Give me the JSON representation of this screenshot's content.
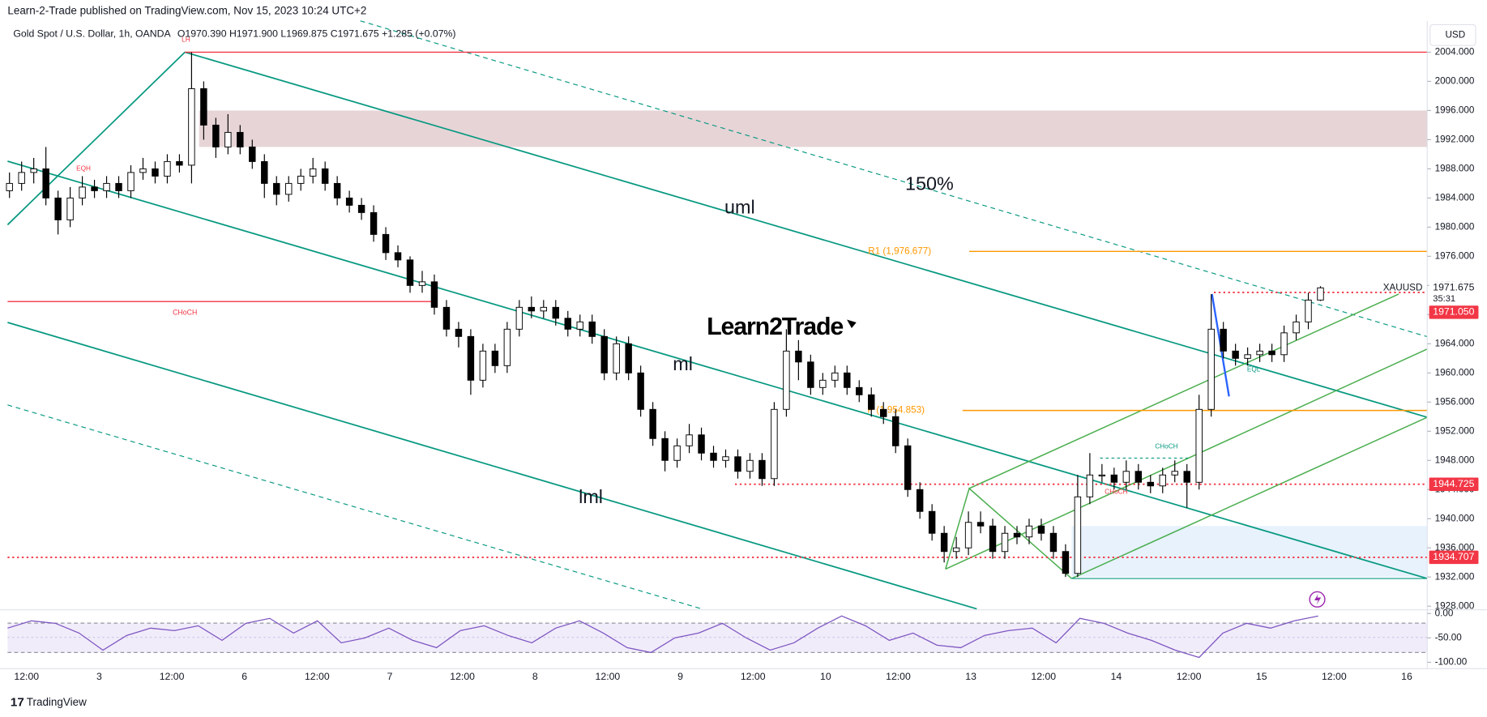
{
  "header": {
    "published": "Learn-2-Trade published on TradingView.com, Nov 15, 2023 10:24 UTC+2",
    "symbol": "Gold Spot / U.S. Dollar, 1h, OANDA",
    "ohlc": "O1970.390 H1971.900 L1969.875 C1971.675 +1.285 (+0.07%)",
    "currency": "USD",
    "footer": "TradingView"
  },
  "chart_data": [
    {
      "type": "candlestick",
      "up_color": "#ffffff",
      "down_color": "#000000",
      "x_labels": [
        "12:00",
        "3",
        "12:00",
        "6",
        "12:00",
        "7",
        "12:00",
        "8",
        "12:00",
        "9",
        "12:00",
        "10",
        "12:00",
        "13",
        "12:00",
        "14",
        "12:00",
        "15",
        "12:00",
        "16"
      ],
      "open": [
        1985,
        1986,
        1987.5,
        1988,
        1984,
        1981,
        1984,
        1985.5,
        1985,
        1986,
        1985,
        1987.5,
        1988,
        1987,
        1989,
        1988.5,
        1999,
        1994,
        1991,
        1993,
        1991,
        1989,
        1986,
        1984.5,
        1986,
        1987,
        1988,
        1986,
        1984,
        1983,
        1982,
        1979,
        1976.5,
        1975.5,
        1972,
        1972.5,
        1969,
        1966,
        1965,
        1959,
        1963,
        1961,
        1966,
        1969,
        1968.5,
        1969,
        1967.5,
        1966,
        1967,
        1965,
        1960,
        1964,
        1960,
        1955,
        1951,
        1948,
        1950,
        1951.5,
        1949,
        1948,
        1948.5,
        1946.5,
        1948,
        1945.5,
        1955,
        1963,
        1961.5,
        1958,
        1959,
        1960,
        1958,
        1957,
        1955,
        1954,
        1950,
        1944,
        1941,
        1938,
        1935.5,
        1936,
        1939.5,
        1939,
        1935.5,
        1938,
        1937.5,
        1939,
        1938,
        1935.5,
        1932.5,
        1943,
        1946,
        1946,
        1945,
        1946.5,
        1945,
        1944.5,
        1946,
        1946.5,
        1945,
        1955,
        1966,
        1963,
        1962,
        1962.5,
        1963,
        1962.5,
        1965.5,
        1967,
        1970
      ],
      "high": [
        1987.5,
        1989,
        1989.5,
        1991,
        1985,
        1985.5,
        1987,
        1986.5,
        1987,
        1987,
        1988.5,
        1989.5,
        1989,
        1990,
        1990,
        2004,
        2000,
        1995,
        1995.5,
        1994,
        1992,
        1990,
        1987,
        1987,
        1988,
        1989.5,
        1989,
        1987,
        1985,
        1984,
        1983,
        1980,
        1977.5,
        1976,
        1974,
        1973.5,
        1970,
        1967,
        1966,
        1964,
        1964,
        1967,
        1970,
        1970.5,
        1970,
        1970,
        1968.5,
        1968,
        1968,
        1966,
        1965,
        1965,
        1961,
        1956,
        1952,
        1951,
        1953,
        1952.5,
        1950,
        1949.5,
        1949.5,
        1949,
        1949,
        1956,
        1966,
        1964.5,
        1962.5,
        1960,
        1961,
        1961,
        1959,
        1958,
        1956,
        1955,
        1951,
        1945,
        1942,
        1939,
        1937.5,
        1941,
        1941,
        1940,
        1939,
        1939,
        1940,
        1940,
        1939,
        1936.5,
        1946,
        1949,
        1947.5,
        1947,
        1948,
        1947.5,
        1946,
        1947,
        1948,
        1947.5,
        1957,
        1970.8,
        1967,
        1964,
        1963.5,
        1964,
        1964,
        1966.5,
        1968,
        1971,
        1971.9
      ],
      "low": [
        1984,
        1985,
        1986,
        1983,
        1979,
        1980,
        1983,
        1984,
        1984,
        1984,
        1984,
        1986.5,
        1986,
        1986,
        1987.5,
        1986,
        1992,
        1989.5,
        1990,
        1990,
        1988,
        1984,
        1983,
        1983.5,
        1985,
        1986,
        1985,
        1983,
        1982,
        1981,
        1978,
        1975.5,
        1974.5,
        1971,
        1971,
        1968,
        1965,
        1963.5,
        1957,
        1958,
        1960,
        1960,
        1965,
        1967.5,
        1967.5,
        1966.5,
        1965,
        1965,
        1964,
        1959,
        1959,
        1959,
        1954,
        1950,
        1946.5,
        1947,
        1949,
        1948,
        1947,
        1947,
        1945.5,
        1945.5,
        1944.5,
        1944.5,
        1954,
        1959,
        1957,
        1957,
        1958,
        1957,
        1956,
        1954,
        1953,
        1949,
        1943,
        1940,
        1937,
        1934,
        1934.5,
        1935,
        1938,
        1934.5,
        1934.5,
        1936.5,
        1936.5,
        1937,
        1934.5,
        1932,
        1932,
        1942,
        1945,
        1944,
        1944,
        1944,
        1943.5,
        1943.5,
        1945,
        1941.5,
        1944,
        1954,
        1962,
        1961,
        1961,
        1961.5,
        1961.5,
        1961.5,
        1964.5,
        1966,
        1969.875
      ],
      "close": [
        1986,
        1987.5,
        1988,
        1984,
        1981,
        1984,
        1985.5,
        1985,
        1986,
        1985,
        1987.5,
        1988,
        1987,
        1989,
        1988.5,
        1999,
        1994,
        1991,
        1993,
        1991,
        1989,
        1986,
        1984.5,
        1986,
        1987,
        1988,
        1986,
        1984,
        1983,
        1982,
        1979,
        1976.5,
        1975.5,
        1972,
        1972.5,
        1969,
        1966,
        1965,
        1959,
        1963,
        1961,
        1966,
        1969,
        1968.5,
        1969,
        1967.5,
        1966,
        1967,
        1965,
        1960,
        1964,
        1960,
        1955,
        1951,
        1948,
        1950,
        1951.5,
        1949,
        1948,
        1948.5,
        1946.5,
        1948,
        1945.5,
        1955,
        1963,
        1961.5,
        1958,
        1959,
        1960,
        1958,
        1957,
        1955,
        1954,
        1950,
        1944,
        1941,
        1938,
        1935.5,
        1936,
        1939.5,
        1939,
        1935.5,
        1938,
        1937.5,
        1939,
        1938,
        1935.5,
        1932.5,
        1943,
        1946,
        1946,
        1945,
        1946.5,
        1945,
        1944.5,
        1946,
        1946.5,
        1945,
        1955,
        1966,
        1963,
        1962,
        1962.5,
        1963,
        1962.5,
        1965.5,
        1967,
        1970,
        1971.675
      ],
      "ylim": [
        1927.5,
        2008.3
      ],
      "yticks": [
        {
          "value": 1928,
          "label": "1928.000"
        },
        {
          "value": 1932,
          "label": "1932.000"
        },
        {
          "value": 1936,
          "label": "1936.000"
        },
        {
          "value": 1940,
          "label": "1940.000"
        },
        {
          "value": 1944,
          "label": "1944.000"
        },
        {
          "value": 1948,
          "label": "1948.000"
        },
        {
          "value": 1952,
          "label": "1952.000"
        },
        {
          "value": 1956,
          "label": "1956.000"
        },
        {
          "value": 1960,
          "label": "1960.000"
        },
        {
          "value": 1964,
          "label": "1964.000"
        },
        {
          "value": 1968,
          "label": "1968.000"
        },
        {
          "value": 1972,
          "label": "1972.000"
        },
        {
          "value": 1976,
          "label": "1976.000"
        },
        {
          "value": 1980,
          "label": "1980.000"
        },
        {
          "value": 1984,
          "label": "1984.000"
        },
        {
          "value": 1988,
          "label": "1988.000"
        },
        {
          "value": 1992,
          "label": "1992.000"
        },
        {
          "value": 1996,
          "label": "1996.000"
        },
        {
          "value": 2000,
          "label": "2000.000"
        },
        {
          "value": 2004,
          "label": "2004.000"
        }
      ],
      "grid": false,
      "zones": [
        {
          "low": 1991,
          "high": 1996,
          "color": "#e3cdd0"
        },
        {
          "low": 1932,
          "high": 1939,
          "color": "#e3f0fd"
        }
      ],
      "levels": [
        {
          "value": 2004,
          "color": "#f23645",
          "dashed": false
        },
        {
          "value": 1969.8,
          "label": "CHoCH",
          "color": "#f23645",
          "dashed": false
        },
        {
          "value": 1976.677,
          "label": "R1 (1,976.677)",
          "color": "#ff9800",
          "dashed": false
        },
        {
          "value": 1954.853,
          "label": "P (1,954.853)",
          "color": "#ff9800",
          "dashed": false
        },
        {
          "value": 1944.725,
          "color": "#f23645",
          "dashed": true
        },
        {
          "value": 1934.707,
          "color": "#f23645",
          "dashed": true
        },
        {
          "value": 1971.05,
          "color": "#f23645",
          "dashed": true
        }
      ],
      "markers": [
        {
          "value": 1971.675,
          "name": "XAUUSD",
          "countdown": "35:31",
          "color": "#ffffff"
        },
        {
          "value": 1971.05,
          "label": "1971.050",
          "color": "#f23645"
        },
        {
          "value": 1944.725,
          "color": "#f23645"
        },
        {
          "value": 1934.707,
          "color": "#f23645"
        }
      ],
      "annotations": [
        {
          "text": "150%",
          "color": "#131722"
        },
        {
          "text": "uml",
          "color": "#131722"
        },
        {
          "text": "ml",
          "color": "#131722"
        },
        {
          "text": "lml",
          "color": "#131722"
        },
        {
          "text": "EQH",
          "color": "#f23645"
        },
        {
          "text": "LH",
          "color": "#f23645"
        },
        {
          "text": "CHoCH",
          "color": "#f23645"
        },
        {
          "text": "CHoCH",
          "color": "#089981"
        },
        {
          "text": "EQL",
          "color": "#089981"
        },
        {
          "text": "Learn2Trade",
          "color": "#000000"
        }
      ]
    },
    {
      "type": "line",
      "color": "#7e57c2",
      "values": [
        -30,
        -15,
        -20,
        -40,
        -75,
        -45,
        -30,
        -35,
        -25,
        -55,
        -20,
        -10,
        -40,
        -15,
        -60,
        -50,
        -30,
        -55,
        -70,
        -35,
        -25,
        -45,
        -60,
        -30,
        -15,
        -40,
        -70,
        -80,
        -50,
        -40,
        -20,
        -50,
        -75,
        -60,
        -30,
        -5,
        -25,
        -55,
        -40,
        -65,
        -70,
        -45,
        -35,
        -30,
        -60,
        -10,
        -20,
        -40,
        -55,
        -75,
        -90,
        -40,
        -20,
        -30,
        -15,
        -5
      ],
      "ylim": [
        -113,
        3.7
      ],
      "yticks": [
        {
          "value": 0,
          "label": "0.00"
        },
        {
          "value": -50,
          "label": "-50.00"
        },
        {
          "value": -100,
          "label": "-100.00"
        }
      ]
    }
  ]
}
